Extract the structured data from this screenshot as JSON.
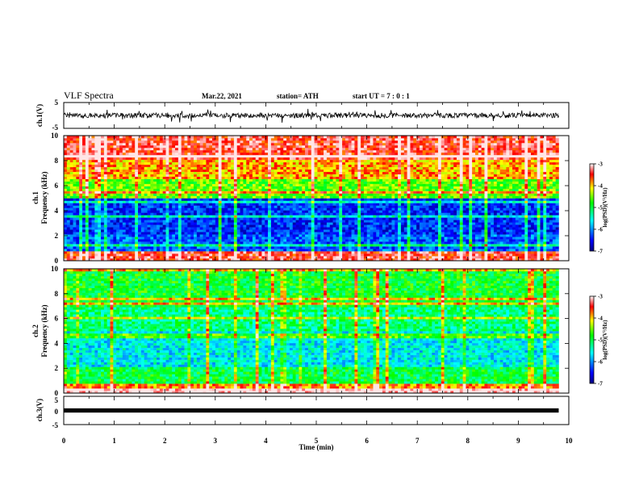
{
  "header": {
    "title": "VLF Spectra",
    "date": "Mar.22, 2021",
    "station": "station= ATH",
    "start": "start  UT =   7 : 0  : 1"
  },
  "chart_data": [
    {
      "type": "line",
      "name": "ch.1 waveform",
      "ylabel": "ch.1(V)",
      "ylim": [
        -5,
        5
      ],
      "yticks": [
        "5",
        "-5"
      ],
      "xlim": [
        0,
        10
      ],
      "baseline": 0,
      "amplitude": 1.2,
      "color": "#000000"
    },
    {
      "type": "heatmap",
      "name": "ch.1 spectrogram",
      "ylabel": "ch.1",
      "ylabel2": "Frequency  (kHz)",
      "ylim": [
        0,
        10
      ],
      "yticks": [
        "0",
        "2",
        "4",
        "6",
        "8",
        "10"
      ],
      "xlim": [
        0,
        10
      ],
      "data_end_min": 9.8,
      "colorbar": {
        "label": "log(PSD)(V²/Hz)",
        "range": [
          -7,
          -3
        ],
        "ticks": [
          "-3",
          "-4",
          "-5",
          "-6",
          "-7"
        ]
      },
      "bands_khz": [
        {
          "from": 0,
          "to": 0.8,
          "level": -3.4
        },
        {
          "from": 0.8,
          "to": 2.2,
          "level": -6.2
        },
        {
          "from": 2.2,
          "to": 5.0,
          "level": -6.4
        },
        {
          "from": 5.0,
          "to": 6.5,
          "level": -4.6
        },
        {
          "from": 6.5,
          "to": 8.0,
          "level": -3.9
        },
        {
          "from": 8.0,
          "to": 10,
          "level": -3.4
        }
      ]
    },
    {
      "type": "heatmap",
      "name": "ch.2 spectrogram",
      "ylabel": "ch.2",
      "ylabel2": "Frequency  (kHz)",
      "ylim": [
        0,
        10
      ],
      "yticks": [
        "0",
        "2",
        "4",
        "6",
        "8",
        "10"
      ],
      "xlim": [
        0,
        10
      ],
      "data_end_min": 9.8,
      "colorbar": {
        "label": "log(PSD)(V²/Hz)",
        "range": [
          -7,
          -3
        ],
        "ticks": [
          "-3",
          "-4",
          "-5",
          "-6",
          "-7"
        ]
      },
      "bands_khz": [
        {
          "from": 0,
          "to": 0.8,
          "level": -3.8
        },
        {
          "from": 0.8,
          "to": 2.2,
          "level": -5.0
        },
        {
          "from": 2.2,
          "to": 5.0,
          "level": -5.6
        },
        {
          "from": 5.0,
          "to": 7.0,
          "level": -5.2
        },
        {
          "from": 7.0,
          "to": 10,
          "level": -4.9
        }
      ]
    },
    {
      "type": "line",
      "name": "ch.3 waveform",
      "ylabel": "ch.3(V)",
      "ylim": [
        -5,
        5
      ],
      "yticks": [
        "5",
        "0",
        "-5"
      ],
      "xlim": [
        0,
        10
      ],
      "baseline": 0,
      "amplitude": 0.3,
      "color": "#000000",
      "xlabel": "Time  (min)",
      "xticks": [
        "0",
        "1",
        "2",
        "3",
        "4",
        "5",
        "6",
        "7",
        "8",
        "9",
        "10"
      ]
    }
  ]
}
